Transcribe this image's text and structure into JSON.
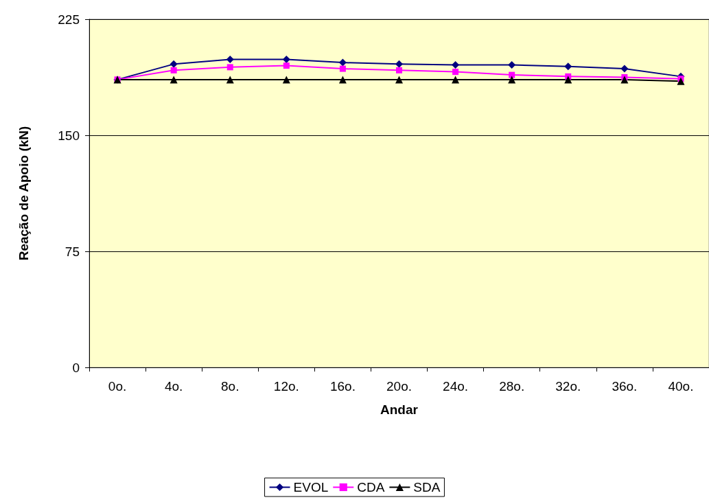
{
  "chart_data": {
    "type": "line",
    "xlabel": "Andar",
    "ylabel": "Reação de Apoio (kN)",
    "categories": [
      "0o.",
      "4o.",
      "8o.",
      "12o.",
      "16o.",
      "20o.",
      "24o.",
      "28o.",
      "32o.",
      "36o.",
      "40o."
    ],
    "series": [
      {
        "name": "EVOL",
        "color": "#000080",
        "marker": "diamond",
        "values": [
          186,
          196,
          199,
          199,
          197,
          196,
          195.5,
          195.5,
          194.5,
          193,
          188
        ]
      },
      {
        "name": "CDA",
        "color": "#ff00ff",
        "marker": "square",
        "values": [
          186,
          192,
          194,
          195,
          193,
          192,
          191,
          189,
          188,
          187.5,
          186.5
        ]
      },
      {
        "name": "SDA",
        "color": "#000000",
        "marker": "triangle",
        "values": [
          186,
          186,
          186,
          186,
          186,
          186,
          186,
          186,
          186,
          186,
          185
        ]
      }
    ],
    "ylim": [
      0,
      225
    ],
    "yticks": [
      0,
      75,
      150,
      225
    ],
    "grid": "y",
    "legend": "bottom",
    "line_style": "solid"
  }
}
